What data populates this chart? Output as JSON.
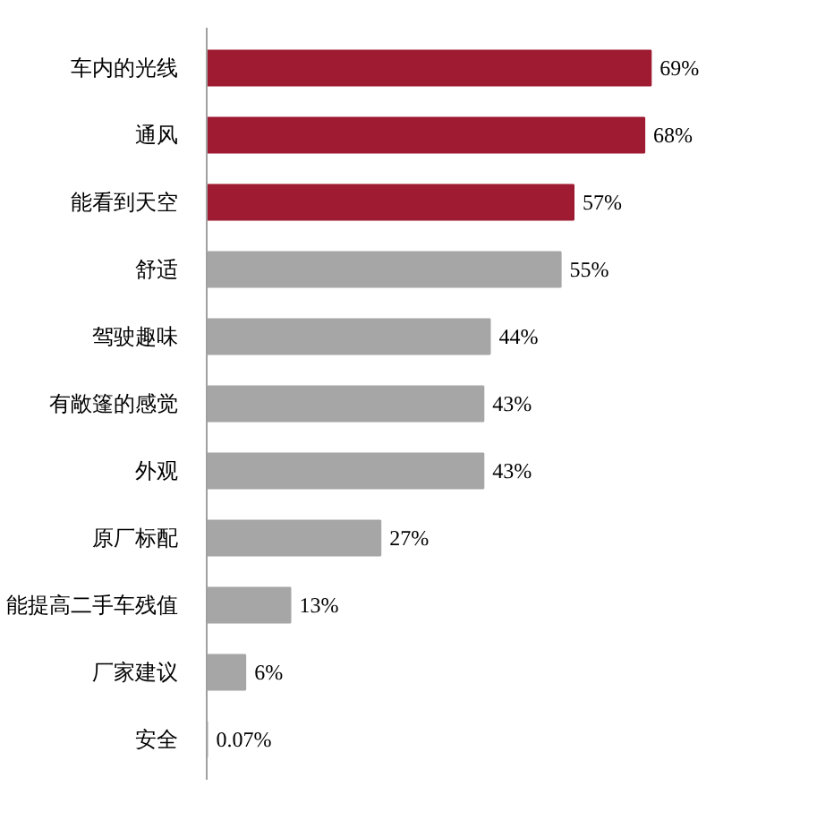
{
  "chart_data": {
    "type": "bar",
    "orientation": "horizontal",
    "categories": [
      "车内的光线",
      "通风",
      "能看到天空",
      "舒适",
      "驾驶趣味",
      "有敞篷的感觉",
      "外观",
      "原厂标配",
      "能提高二手车残值",
      "厂家建议",
      "安全"
    ],
    "values": [
      69,
      68,
      57,
      55,
      44,
      43,
      43,
      27,
      13,
      6,
      0.07
    ],
    "colors": [
      "#9e1b32",
      "#9e1b32",
      "#9e1b32",
      "#a6a6a6",
      "#a6a6a6",
      "#a6a6a6",
      "#a6a6a6",
      "#a6a6a6",
      "#a6a6a6",
      "#a6a6a6",
      "#a6a6a6"
    ],
    "value_labels": [
      "69%",
      "68%",
      "57%",
      "55%",
      "44%",
      "43%",
      "43%",
      "27%",
      "13%",
      "6%",
      "0.07%"
    ],
    "grid": false
  }
}
